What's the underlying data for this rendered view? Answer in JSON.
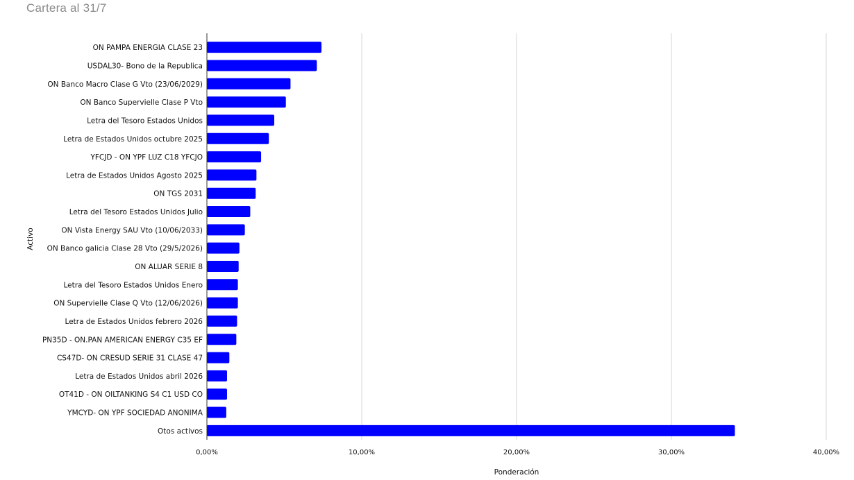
{
  "page": {
    "title": "Cartera al 31/7"
  },
  "chart_data": {
    "type": "bar",
    "orientation": "horizontal",
    "title": "",
    "xlabel": "Ponderación",
    "ylabel": "Activo",
    "xlim": [
      0,
      40
    ],
    "xticks": [
      0,
      10,
      20,
      30,
      40
    ],
    "xtick_labels": [
      "0,00%",
      "10,00%",
      "20,00%",
      "30,00%",
      "40,00%"
    ],
    "grid": true,
    "bar_color": "#0000ff",
    "categories": [
      "ON PAMPA ENERGIA CLASE 23",
      "USDAL30- Bono de la Republica",
      "ON Banco Macro Clase G Vto (23/06/2029)",
      "ON Banco Supervielle Clase P Vto",
      "Letra del Tesoro Estados Unidos",
      "Letra de Estados Unidos octubre 2025",
      "YFCJD - ON YPF LUZ C18 YFCJO",
      "Letra de Estados Unidos Agosto 2025",
      "ON TGS 2031",
      "Letra del Tesoro Estados Unidos Julio",
      "ON Vista Energy SAU Vto (10/06/2033)",
      "ON Banco galicia Clase 28 Vto (29/5/2026)",
      "ON ALUAR SERIE 8",
      "Letra del Tesoro Estados Unidos Enero",
      "ON Supervielle Clase Q Vto (12/06/2026)",
      "Letra de Estados Unidos febrero 2026",
      "PN35D - ON.PAN AMERICAN ENERGY C35 EF",
      "CS47D- ON CRESUD SERIE 31 CLASE 47",
      "Letra de Estados Unidos abril 2026",
      "OT41D - ON OILTANKING S4 C1 USD CO",
      "YMCYD- ON YPF SOCIEDAD ANONIMA",
      "Otos activos"
    ],
    "values": [
      7.4,
      7.1,
      5.4,
      5.1,
      4.35,
      4.0,
      3.5,
      3.2,
      3.15,
      2.8,
      2.45,
      2.1,
      2.05,
      2.0,
      2.0,
      1.95,
      1.9,
      1.45,
      1.3,
      1.3,
      1.25,
      34.1
    ]
  }
}
